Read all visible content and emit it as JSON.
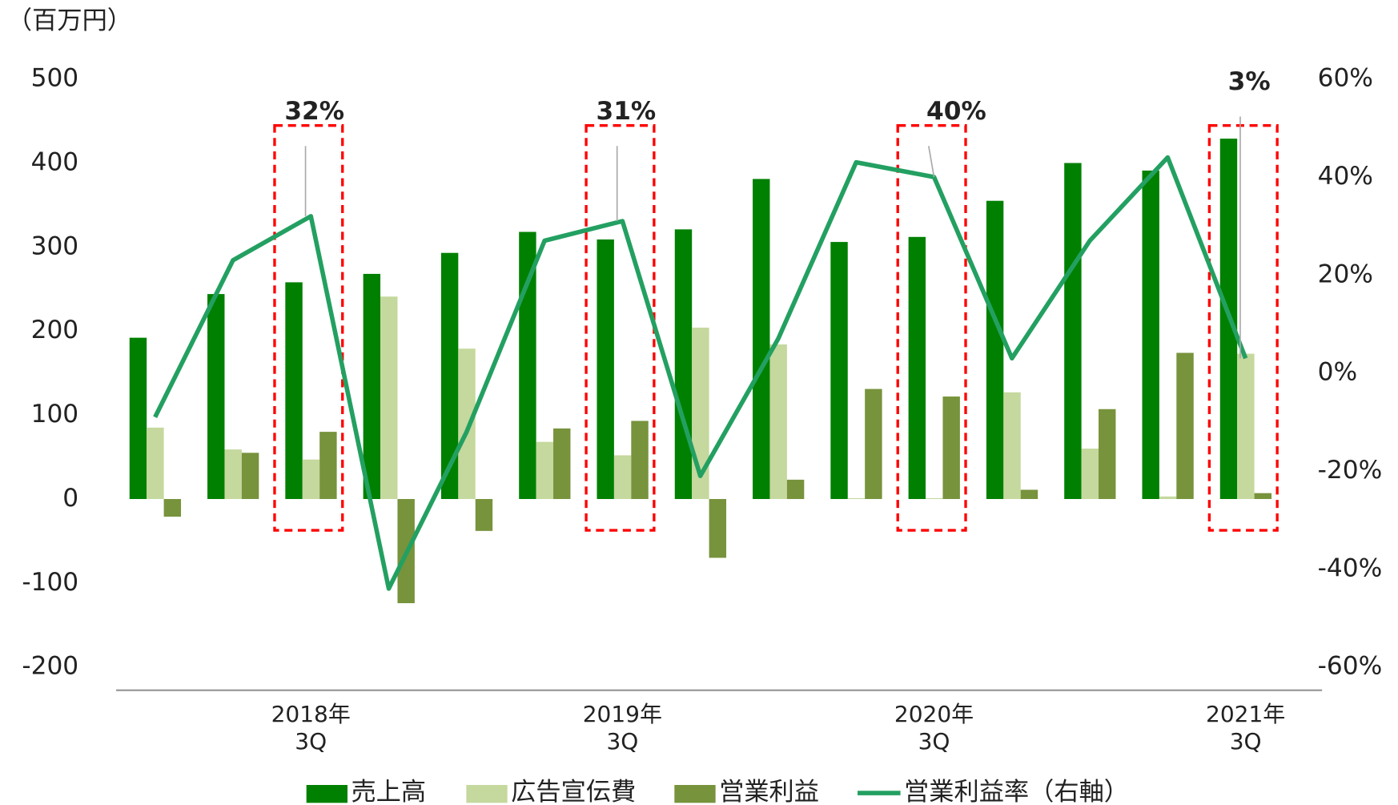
{
  "chart_data": {
    "type": "bar",
    "y_label": "（百万円）",
    "categories": [
      "",
      "",
      "2018年\n3Q",
      "",
      "",
      "",
      "2019年\n3Q",
      "",
      "",
      "",
      "2020年\n3Q",
      "",
      "",
      "",
      "2021年\n3Q"
    ],
    "series": [
      {
        "name": "売上高",
        "color": "#008000",
        "values": [
          192,
          244,
          258,
          268,
          293,
          318,
          309,
          321,
          381,
          306,
          312,
          355,
          400,
          391,
          429
        ]
      },
      {
        "name": "広告宣伝費",
        "color": "#c5d89d",
        "values": [
          85,
          59,
          47,
          241,
          179,
          68,
          52,
          204,
          184,
          1,
          1,
          127,
          60,
          3,
          173
        ]
      },
      {
        "name": "営業利益",
        "color": "#77933c",
        "values": [
          -21,
          55,
          80,
          -124,
          -38,
          84,
          93,
          -70,
          23,
          131,
          122,
          11,
          107,
          174,
          7
        ]
      },
      {
        "name": "営業利益率（右軸）",
        "color": "#23a061",
        "type": "line",
        "axis": "y2",
        "values": [
          -9,
          23,
          32,
          -44,
          -12,
          27,
          31,
          -21,
          7,
          43,
          40,
          3,
          27,
          44,
          3
        ],
        "value_labels": [
          null,
          null,
          "32%",
          null,
          null,
          null,
          "31%",
          null,
          null,
          null,
          "40%",
          null,
          null,
          null,
          "3%"
        ]
      }
    ],
    "ylim": [
      -200,
      500
    ],
    "yticks": [
      -200,
      -100,
      0,
      100,
      200,
      300,
      400,
      500
    ],
    "y2lim": [
      -60,
      60
    ],
    "y2ticks": [
      {
        "value": -60,
        "label": "-60%"
      },
      {
        "value": -40,
        "label": "-40%"
      },
      {
        "value": -20,
        "label": "-20%"
      },
      {
        "value": 0,
        "label": "0%"
      },
      {
        "value": 20,
        "label": "20%"
      },
      {
        "value": 40,
        "label": "40%"
      },
      {
        "value": 60,
        "label": "60%"
      }
    ],
    "legend": "bottom"
  }
}
